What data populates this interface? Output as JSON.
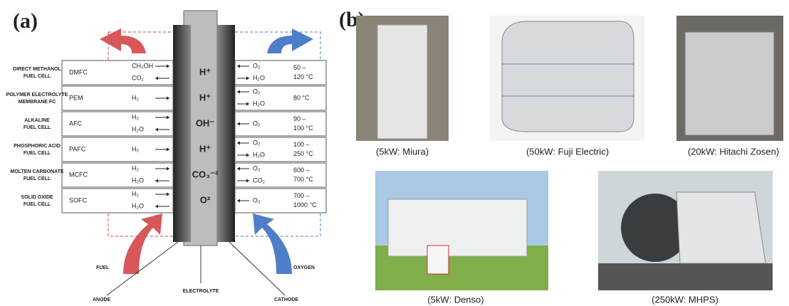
{
  "panel_a": {
    "label": "(a)",
    "rows": [
      {
        "name": [
          "DIRECT METHANOL",
          "FUEL CELL"
        ],
        "abbr": "DMFC",
        "anode": [
          "CH₃OH",
          "CO₂"
        ],
        "ion": "H⁺",
        "cathode": [
          "O₂",
          "H₂O"
        ],
        "temp": [
          "50 –",
          "120 °C"
        ]
      },
      {
        "name": [
          "POLYMER ELECTROLYTE",
          "MEMBRANE FC"
        ],
        "abbr": "PEM",
        "anode": [
          "H₂"
        ],
        "ion": "H⁺",
        "cathode": [
          "O₂",
          "H₂O"
        ],
        "temp": [
          "80 °C"
        ]
      },
      {
        "name": [
          "ALKALINE",
          "FUEL CELL"
        ],
        "abbr": "AFC",
        "anode": [
          "H₂",
          "H₂O"
        ],
        "ion": "OH⁻",
        "cathode": [
          "O₂"
        ],
        "temp": [
          "90 –",
          "100 °C"
        ]
      },
      {
        "name": [
          "PHOSPHORIC ACID",
          "FUEL CELL"
        ],
        "abbr": "PAFC",
        "anode": [
          "H₂"
        ],
        "ion": "H⁺",
        "cathode": [
          "O₂",
          "H₂O"
        ],
        "temp": [
          "100 –",
          "250 °C"
        ]
      },
      {
        "name": [
          "MOLTEN CARBONATE",
          "FUEL CELL"
        ],
        "abbr": "MCFC",
        "anode": [
          "H₂",
          "H₂O"
        ],
        "ion": "CO₃⁻²",
        "cathode": [
          "O₂",
          "CO₂"
        ],
        "temp": [
          "600 –",
          "700 °C"
        ]
      },
      {
        "name": [
          "SOLID OXIDE",
          "FUEL CELL"
        ],
        "abbr": "SOFC",
        "anode": [
          "H₂",
          "H₂O"
        ],
        "ion": "O²",
        "cathode": [
          "O₂"
        ],
        "temp": [
          "700 –",
          "1000 °C"
        ]
      }
    ],
    "fuel": "FUEL",
    "oxygen": "OXYGEN",
    "anode": "ANODE",
    "electrolyte": "ELECTROLYTE",
    "cathode": "CATHODE"
  },
  "panel_b": {
    "label": "(b)",
    "photos": [
      "(5kW: Miura)",
      "(50kW: Fuji Electric)",
      "(20kW: Hitachi Zosen)",
      "(5kW: Denso)",
      "(250kW: MHPS)"
    ]
  }
}
